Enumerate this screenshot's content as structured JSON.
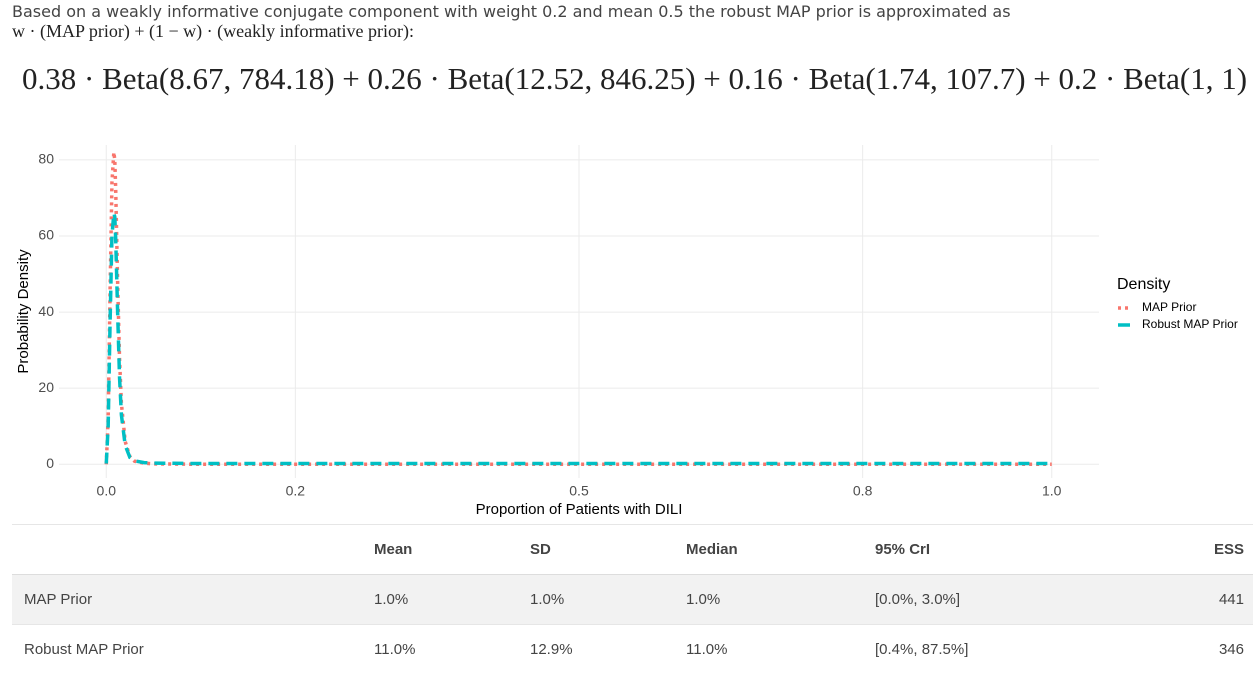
{
  "intro": {
    "line1": "Based on a weakly informative conjugate component with weight 0.2 and mean 0.5 the robust MAP prior is approximated as",
    "line2": "w · (MAP prior) + (1 − w) · (weakly informative prior):"
  },
  "formula": "0.38 · Beta(8.67, 784.18) + 0.26 · Beta(12.52, 846.25) + 0.16 · Beta(1.74, 107.7) + 0.2 · Beta(1, 1)",
  "chart_data": {
    "type": "line",
    "x_label": "Proportion of Patients with DILI",
    "y_label": "Probability Density",
    "x": [
      0,
      0.002,
      0.004,
      0.006,
      0.008,
      0.009,
      0.01,
      0.012,
      0.014,
      0.016,
      0.02,
      0.025,
      0.03,
      0.04,
      0.05,
      0.1,
      0.2,
      0.3,
      0.4,
      0.5,
      0.6,
      0.7,
      0.8,
      0.9,
      1.0
    ],
    "series": [
      {
        "name": "MAP Prior",
        "color": "#f8766d",
        "linestyle": "dotted",
        "values": [
          0,
          12,
          45,
          74,
          82,
          80,
          72,
          48,
          28,
          16,
          6,
          2,
          0.8,
          0.3,
          0.1,
          0,
          0,
          0,
          0,
          0,
          0,
          0,
          0,
          0,
          0
        ]
      },
      {
        "name": "Robust MAP Prior",
        "color": "#00bfc4",
        "linestyle": "dashed",
        "values": [
          0.2,
          10,
          37,
          60,
          66,
          65,
          59,
          40,
          23,
          13,
          5,
          1.8,
          0.9,
          0.45,
          0.3,
          0.2,
          0.2,
          0.2,
          0.2,
          0.2,
          0.2,
          0.2,
          0.2,
          0.2,
          0.2
        ]
      }
    ],
    "xlim": [
      -0.05,
      1.05
    ],
    "ylim": [
      -3.6,
      83.9
    ],
    "xticks": [
      {
        "value": 0,
        "label": "0.0"
      },
      0.2,
      0.5,
      0.8,
      {
        "value": 1,
        "label": "1.0"
      }
    ],
    "yticks": [
      0,
      20,
      40,
      60,
      80
    ],
    "grid": true,
    "legend_title": "Density",
    "legend_position": "right"
  },
  "table": {
    "columns": [
      "Mean",
      "SD",
      "Median",
      "95% CrI",
      "ESS"
    ],
    "rows": [
      {
        "label": "MAP Prior",
        "cells": [
          "1.0%",
          "1.0%",
          "1.0%",
          "[0.0%, 3.0%]",
          "441"
        ]
      },
      {
        "label": "Robust MAP Prior",
        "cells": [
          "11.0%",
          "12.9%",
          "11.0%",
          "[0.4%, 87.5%]",
          "346"
        ]
      }
    ]
  }
}
